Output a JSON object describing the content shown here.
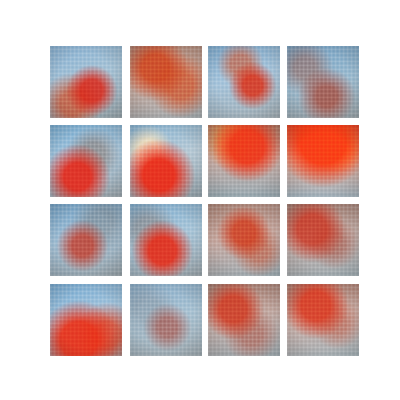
{
  "figure": {
    "background": "#ffffff",
    "grid": {
      "rows": 4,
      "cols": 4
    },
    "tiles": [
      {
        "row": 0,
        "col": 0
      },
      {
        "row": 0,
        "col": 1
      },
      {
        "row": 0,
        "col": 2
      },
      {
        "row": 0,
        "col": 3
      },
      {
        "row": 1,
        "col": 0
      },
      {
        "row": 1,
        "col": 1
      },
      {
        "row": 1,
        "col": 2
      },
      {
        "row": 1,
        "col": 3
      },
      {
        "row": 2,
        "col": 0
      },
      {
        "row": 2,
        "col": 1
      },
      {
        "row": 2,
        "col": 2
      },
      {
        "row": 2,
        "col": 3
      },
      {
        "row": 3,
        "col": 0
      },
      {
        "row": 3,
        "col": 1
      },
      {
        "row": 3,
        "col": 2
      },
      {
        "row": 3,
        "col": 3
      }
    ]
  }
}
